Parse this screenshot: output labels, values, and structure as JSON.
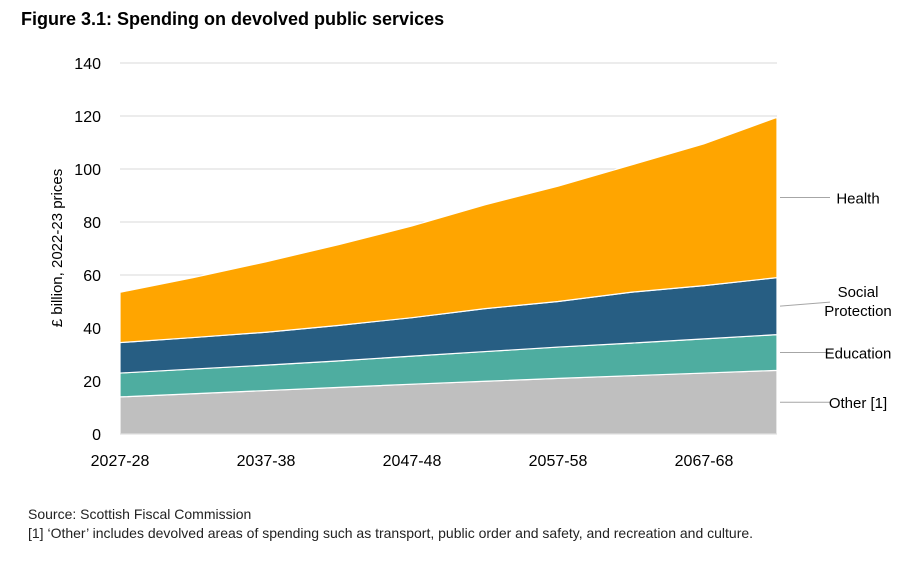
{
  "title": "Figure 3.1: Spending on devolved public services",
  "footer": {
    "source": "Source: Scottish Fiscal Commission",
    "note": "[1] ‘Other’ includes devolved areas of spending such as transport, public order and safety, and recreation and culture."
  },
  "chart_data": {
    "type": "area",
    "stacked": true,
    "title": "Figure 3.1: Spending on devolved public services",
    "xlabel": "",
    "ylabel": "£ billion, 2022-23 prices",
    "ylim": [
      0,
      140
    ],
    "yticks": [
      0,
      20,
      40,
      60,
      80,
      100,
      120,
      140
    ],
    "xticks": [
      "2027-28",
      "2037-38",
      "2047-48",
      "2057-58",
      "2067-68"
    ],
    "grid": true,
    "legend": "right, labels connected by leader lines",
    "categories": [
      "2027-28",
      "2032-33",
      "2037-38",
      "2042-43",
      "2047-48",
      "2052-53",
      "2057-58",
      "2062-63",
      "2067-68",
      "2072-73"
    ],
    "series": [
      {
        "name": "Other [1]",
        "color": "#bfbfbf",
        "values": [
          14.0,
          15.2,
          16.4,
          17.6,
          18.8,
          19.9,
          21.0,
          22.0,
          23.0,
          24.0
        ]
      },
      {
        "name": "Education",
        "color": "#4eada0",
        "values": [
          9.0,
          9.3,
          9.6,
          10.0,
          10.6,
          11.2,
          11.8,
          12.3,
          12.9,
          13.5
        ]
      },
      {
        "name": "Social Protection",
        "color": "#275e83",
        "values": [
          11.5,
          11.9,
          12.4,
          13.4,
          14.5,
          16.2,
          17.2,
          19.2,
          20.1,
          21.5
        ]
      },
      {
        "name": "Health",
        "color": "#ffa500",
        "values": [
          19.0,
          22.6,
          26.6,
          30.5,
          34.6,
          39.2,
          43.5,
          48.0,
          53.5,
          60.5
        ]
      }
    ]
  }
}
